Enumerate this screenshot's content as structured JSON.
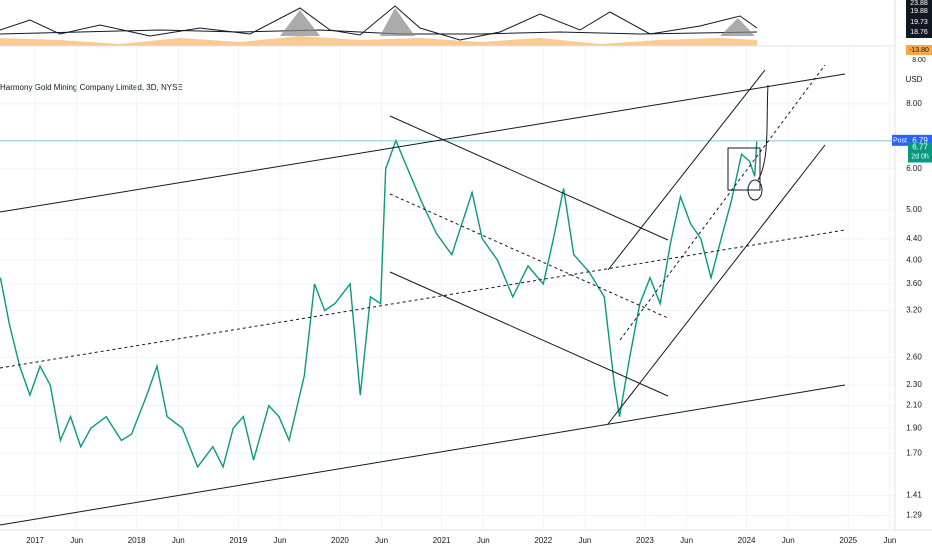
{
  "chart_data": {
    "type": "line",
    "title": "Harmony Gold Mining Company Limited, 3D, NYSE",
    "currency": "USD",
    "ylog": true,
    "grid": true,
    "color": "#089981",
    "xlim": [
      2016.656,
      2025.46
    ],
    "ylim": [
      1.21,
      9.63
    ],
    "x": [
      2016.66,
      2016.75,
      2016.85,
      2016.95,
      2017.05,
      2017.15,
      2017.25,
      2017.35,
      2017.45,
      2017.55,
      2017.7,
      2017.85,
      2017.95,
      2018.1,
      2018.2,
      2018.3,
      2018.45,
      2018.6,
      2018.75,
      2018.85,
      2018.95,
      2019.05,
      2019.15,
      2019.3,
      2019.4,
      2019.5,
      2019.65,
      2019.75,
      2019.85,
      2019.95,
      2020.1,
      2020.2,
      2020.3,
      2020.4,
      2020.45,
      2020.55,
      2020.65,
      2020.8,
      2020.95,
      2021.1,
      2021.3,
      2021.4,
      2021.55,
      2021.7,
      2021.85,
      2022.0,
      2022.1,
      2022.2,
      2022.3,
      2022.45,
      2022.6,
      2022.7,
      2022.75,
      2022.85,
      2022.95,
      2023.05,
      2023.15,
      2023.25,
      2023.35,
      2023.45,
      2023.55,
      2023.65,
      2023.75,
      2023.85,
      2023.95,
      2024.03,
      2024.08,
      2024.1
    ],
    "values": [
      3.7,
      3.0,
      2.5,
      2.2,
      2.5,
      2.3,
      1.8,
      2.0,
      1.75,
      1.9,
      2.0,
      1.8,
      1.85,
      2.2,
      2.5,
      2.0,
      1.9,
      1.6,
      1.75,
      1.6,
      1.9,
      2.0,
      1.65,
      2.1,
      2.0,
      1.8,
      2.4,
      3.6,
      3.2,
      3.3,
      3.6,
      2.2,
      3.4,
      3.3,
      6.0,
      6.8,
      6.1,
      5.2,
      4.5,
      4.1,
      5.4,
      4.4,
      4.0,
      3.4,
      3.9,
      3.6,
      4.4,
      5.5,
      4.1,
      3.8,
      3.4,
      2.3,
      2.0,
      2.6,
      3.3,
      3.7,
      3.3,
      4.3,
      5.3,
      4.7,
      4.4,
      3.7,
      4.4,
      5.2,
      6.4,
      6.2,
      5.8,
      6.77
    ],
    "yticks": [
      {
        "value": 8,
        "label": "8.00"
      },
      {
        "value": 6,
        "label": "6.00"
      },
      {
        "value": 5,
        "label": "5.00"
      },
      {
        "value": 4.4,
        "label": "4.40"
      },
      {
        "value": 4,
        "label": "4.00"
      },
      {
        "value": 3.6,
        "label": "3.60"
      },
      {
        "value": 3.2,
        "label": "3.20"
      },
      {
        "value": 2.6,
        "label": "2.60"
      },
      {
        "value": 2.3,
        "label": "2.30"
      },
      {
        "value": 2.1,
        "label": "2.10"
      },
      {
        "value": 1.9,
        "label": "1.90"
      },
      {
        "value": 1.7,
        "label": "1.70"
      },
      1.41,
      1.29
    ],
    "xticks": [
      {
        "value": 2017,
        "label": "2017"
      },
      {
        "value": 2017.41,
        "label": "Jun"
      },
      {
        "value": 2018,
        "label": "2018"
      },
      {
        "value": 2018.41,
        "label": "Jun"
      },
      {
        "value": 2019,
        "label": "2019"
      },
      {
        "value": 2019.41,
        "label": "Jun"
      },
      {
        "value": 2020,
        "label": "2020"
      },
      {
        "value": 2020.41,
        "label": "Jun"
      },
      {
        "value": 2021,
        "label": "2021"
      },
      {
        "value": 2021.41,
        "label": "Jun"
      },
      {
        "value": 2022,
        "label": "2022"
      },
      {
        "value": 2022.41,
        "label": "Jun"
      },
      {
        "value": 2023,
        "label": "2023"
      },
      {
        "value": 2023.41,
        "label": "Jun"
      },
      {
        "value": 2024,
        "label": "2024"
      },
      {
        "value": 2024.41,
        "label": "Jun"
      },
      {
        "value": 2025,
        "label": "2025"
      },
      {
        "value": 2025.41,
        "label": "Jun"
      }
    ],
    "post_label": "Post",
    "post_price": 6.79,
    "last_price": 6.77,
    "countdown": "2d 0h"
  },
  "indicator_panel": {
    "value_labels": [
      "23.88",
      "19.88",
      "19.73",
      "18.76",
      "-13.80",
      "8.00"
    ]
  }
}
